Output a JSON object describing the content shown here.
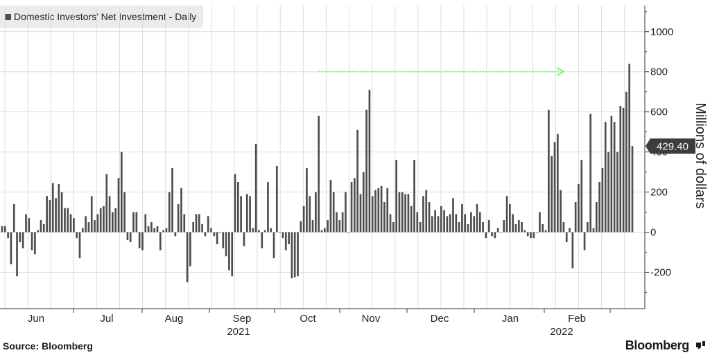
{
  "legend": {
    "label": "Domestic Investors' Net Investment - Daily"
  },
  "source": "Source: Bloomberg",
  "brand": "Bloomberg",
  "colors": {
    "bar": "#4d4d4d",
    "arrow": "#66ff66",
    "grid": "#dcdcdc",
    "callout": "#3d3d3d"
  },
  "chart_data": {
    "type": "bar",
    "title": "",
    "xlabel": "",
    "ylabel": "Millions of dollars",
    "ylim": [
      -380,
      1130
    ],
    "yticks": [
      -200,
      0,
      200,
      400,
      600,
      800,
      1000
    ],
    "ytick_labels": [
      "-200",
      "0",
      "200",
      "400",
      "600",
      "800",
      "1000"
    ],
    "grid": true,
    "legend_position": "top-left",
    "x_tick_labels": [
      "Jun",
      "Jul",
      "Aug",
      "Sep",
      "Oct",
      "Nov",
      "Dec",
      "Jan",
      "Feb"
    ],
    "year_labels": [
      "2021",
      "2022"
    ],
    "last_value_label": "429.40",
    "annotation": "green dotted arrow pointing right near 800",
    "series": [
      {
        "values": [
          30,
          30,
          -30,
          -160,
          140,
          -220,
          -50,
          -80,
          90,
          70,
          -90,
          -110,
          10,
          60,
          40,
          180,
          160,
          245,
          170,
          240,
          200,
          120,
          120,
          90,
          70,
          -30,
          -130,
          20,
          80,
          50,
          180,
          60,
          90,
          120,
          130,
          290,
          180,
          100,
          120,
          270,
          400,
          200,
          -40,
          -50,
          100,
          100,
          -80,
          -90,
          90,
          30,
          50,
          20,
          30,
          -90,
          10,
          20,
          200,
          320,
          -20,
          140,
          220,
          90,
          -250,
          -170,
          50,
          90,
          90,
          40,
          -20,
          80,
          20,
          -20,
          -60,
          0,
          -80,
          -120,
          -190,
          -220,
          290,
          250,
          180,
          -70,
          190,
          180,
          20,
          440,
          10,
          -80,
          10,
          250,
          20,
          -130,
          330,
          0,
          -30,
          -90,
          -60,
          -230,
          -225,
          -220,
          55,
          130,
          320,
          180,
          60,
          200,
          580,
          10,
          20,
          60,
          260,
          200,
          100,
          60,
          100,
          200,
          0,
          250,
          270,
          510,
          190,
          300,
          610,
          710,
          180,
          210,
          220,
          230,
          150,
          220,
          90,
          50,
          360,
          200,
          200,
          190,
          190,
          130,
          360,
          100,
          50,
          180,
          210,
          150,
          80,
          110,
          80,
          130,
          110,
          80,
          90,
          170,
          90,
          50,
          140,
          90,
          40,
          100,
          80,
          140,
          100,
          50,
          -30,
          60,
          -20,
          -30,
          20,
          0,
          60,
          180,
          140,
          90,
          40,
          60,
          50,
          10,
          -20,
          -30,
          -30,
          0,
          100,
          40,
          10,
          610,
          380,
          450,
          490,
          210,
          50,
          -50,
          20,
          -180,
          150,
          240,
          360,
          -90,
          50,
          590,
          20,
          150,
          250,
          320,
          550,
          400,
          580,
          550,
          400,
          630,
          620,
          700,
          840,
          429.4
        ]
      }
    ]
  }
}
